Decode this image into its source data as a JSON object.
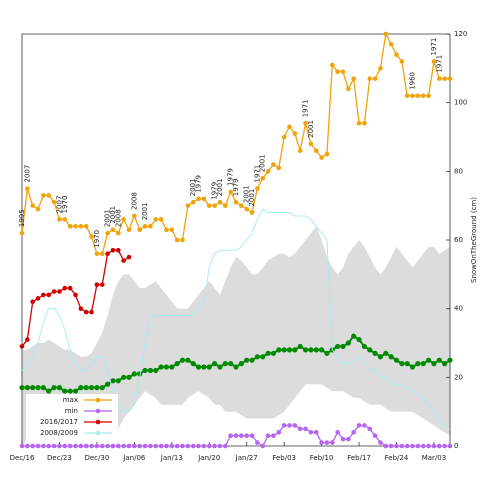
{
  "chart_data": {
    "type": "line",
    "y_label": "SnowOnTheGround (cm)",
    "categories": [
      "Dec/16",
      null,
      null,
      null,
      null,
      null,
      null,
      "Dec/23",
      null,
      null,
      null,
      null,
      null,
      null,
      "Dec/30",
      null,
      null,
      null,
      null,
      null,
      null,
      "Jan/06",
      null,
      null,
      null,
      null,
      null,
      null,
      "Jan/13",
      null,
      null,
      null,
      null,
      null,
      null,
      "Jan/20",
      null,
      null,
      null,
      null,
      null,
      null,
      "Jan/27",
      null,
      null,
      null,
      null,
      null,
      null,
      "Feb/03",
      null,
      null,
      null,
      null,
      null,
      null,
      "Feb/10",
      null,
      null,
      null,
      null,
      null,
      null,
      "Feb/17",
      null,
      null,
      null,
      null,
      null,
      null,
      "Feb/24",
      null,
      null,
      null,
      null,
      null,
      null,
      "Mar/03",
      null,
      null,
      null
    ],
    "ylim": [
      0,
      120
    ],
    "yticks": [
      0,
      20,
      40,
      60,
      80,
      100,
      120
    ],
    "grid": false,
    "legend": "lower left",
    "band": {
      "color": "#dcdcdc",
      "lower": [
        0,
        2,
        5,
        8,
        10,
        12,
        12,
        10,
        8,
        8,
        6,
        5,
        4,
        3,
        3,
        2,
        2,
        3,
        5,
        8,
        10,
        12,
        14,
        16,
        15,
        14,
        12,
        12,
        12,
        12,
        12,
        14,
        15,
        16,
        15,
        14,
        12,
        12,
        10,
        10,
        10,
        9,
        8,
        8,
        8,
        8,
        8,
        8,
        9,
        10,
        12,
        14,
        16,
        18,
        18,
        18,
        18,
        17,
        16,
        16,
        16,
        15,
        14,
        14,
        13,
        12,
        12,
        12,
        11,
        10,
        10,
        10,
        10,
        10,
        9,
        8,
        7,
        6,
        5,
        4,
        3
      ],
      "upper": [
        28,
        28,
        29,
        30,
        30,
        31,
        30,
        29,
        28,
        28,
        27,
        26,
        26,
        27,
        30,
        33,
        38,
        44,
        48,
        50,
        50,
        48,
        46,
        46,
        47,
        48,
        46,
        44,
        42,
        40,
        40,
        40,
        42,
        44,
        46,
        48,
        46,
        44,
        48,
        52,
        55,
        54,
        52,
        50,
        50,
        52,
        54,
        55,
        56,
        56,
        55,
        56,
        58,
        60,
        62,
        64,
        60,
        55,
        52,
        50,
        52,
        56,
        58,
        60,
        58,
        55,
        52,
        50,
        52,
        55,
        58,
        56,
        54,
        52,
        54,
        56,
        58,
        58,
        56,
        57,
        58
      ]
    },
    "series": [
      {
        "color": "#008a00",
        "values": [
          17,
          17,
          17,
          17,
          17,
          16,
          17,
          17,
          16,
          16,
          16,
          17,
          17,
          17,
          17,
          17,
          18,
          19,
          19,
          20,
          20,
          21,
          21,
          22,
          22,
          22,
          23,
          23,
          23,
          24,
          25,
          25,
          24,
          23,
          23,
          23,
          24,
          23,
          24,
          24,
          23,
          24,
          25,
          25,
          26,
          26,
          27,
          27,
          28,
          28,
          28,
          28,
          29,
          28,
          28,
          28,
          28,
          27,
          28,
          29,
          29,
          30,
          32,
          31,
          29,
          28,
          27,
          26,
          27,
          26,
          25,
          24,
          24,
          23,
          24,
          24,
          25,
          24,
          25,
          24,
          25
        ]
      },
      {
        "name": "max",
        "color": "#f0a30a",
        "values": [
          62,
          75,
          70,
          69,
          73,
          73,
          71,
          66,
          66,
          64,
          64,
          64,
          64,
          61,
          56,
          56,
          62,
          63,
          62,
          66,
          63,
          67,
          63,
          64,
          64,
          66,
          66,
          63,
          63,
          60,
          60,
          70,
          71,
          72,
          72,
          70,
          70,
          71,
          70,
          74,
          71,
          70,
          69,
          68,
          75,
          78,
          80,
          82,
          81,
          90,
          93,
          91,
          86,
          94,
          88,
          86,
          84,
          85,
          111,
          109,
          109,
          104,
          107,
          94,
          94,
          107,
          107,
          110,
          120,
          117,
          114,
          112,
          102,
          102,
          102,
          102,
          102,
          112,
          107,
          107,
          107
        ]
      },
      {
        "name": "min",
        "color": "#b565f0",
        "values": [
          0,
          0,
          0,
          0,
          0,
          0,
          0,
          0,
          0,
          0,
          0,
          0,
          0,
          0,
          0,
          0,
          0,
          0,
          0,
          0,
          0,
          0,
          0,
          0,
          0,
          0,
          0,
          0,
          0,
          0,
          0,
          0,
          0,
          0,
          0,
          0,
          0,
          0,
          0,
          3,
          3,
          3,
          3,
          3,
          1,
          0,
          3,
          3,
          4,
          6,
          6,
          6,
          5,
          5,
          4,
          4,
          1,
          1,
          1,
          4,
          2,
          2,
          4,
          6,
          6,
          5,
          3,
          1,
          0,
          0,
          0,
          0,
          0,
          0,
          0,
          0,
          0,
          0,
          0,
          0,
          0
        ]
      },
      {
        "name": "2016/2017",
        "color": "#d40000",
        "values": [
          29,
          31,
          42,
          43,
          44,
          44,
          45,
          45,
          46,
          46,
          44,
          40,
          39,
          39,
          47,
          47,
          56,
          57,
          57,
          54,
          55,
          null,
          null,
          null,
          null,
          null,
          null,
          null,
          null,
          null,
          null,
          null,
          null,
          null,
          null,
          null,
          null,
          null,
          null,
          null,
          null,
          null,
          null,
          null,
          null,
          null,
          null,
          null,
          null,
          null,
          null,
          null,
          null,
          null,
          null,
          null,
          null,
          null,
          null,
          null,
          null,
          null,
          null,
          null,
          null,
          null,
          null,
          null,
          null,
          null,
          null,
          null,
          null,
          null,
          null,
          null,
          null,
          null,
          null,
          null,
          null
        ]
      },
      {
        "name": "2008/2009",
        "color": "#a8ecf0",
        "values": [
          22,
          24,
          26,
          30,
          36,
          40,
          40,
          38,
          34,
          28,
          24,
          22,
          22,
          24,
          26,
          26,
          22,
          16,
          12,
          10,
          10,
          12,
          20,
          30,
          38,
          38,
          38,
          38,
          38,
          38,
          38,
          38,
          38,
          40,
          42,
          52,
          56,
          57,
          57,
          57,
          57,
          58,
          60,
          62,
          66,
          69,
          68,
          68,
          68,
          68,
          68,
          67,
          67,
          67,
          66,
          64,
          62,
          60,
          28,
          26,
          24,
          24,
          25,
          26,
          24,
          22,
          22,
          20,
          20,
          19,
          18,
          18,
          17,
          16,
          15,
          14,
          12,
          10,
          8,
          6,
          5
        ]
      }
    ],
    "annotations": [
      {
        "text": "1995",
        "series": 1,
        "index": 0
      },
      {
        "text": "2007",
        "series": 1,
        "index": 1
      },
      {
        "text": "2007",
        "series": 1,
        "index": 7
      },
      {
        "text": "1970",
        "series": 1,
        "index": 8
      },
      {
        "text": "1970",
        "series": 1,
        "index": 14
      },
      {
        "text": "2001",
        "series": 1,
        "index": 16
      },
      {
        "text": "2001",
        "series": 1,
        "index": 17
      },
      {
        "text": "2008",
        "series": 1,
        "index": 18
      },
      {
        "text": "2008",
        "series": 1,
        "index": 21
      },
      {
        "text": "2001",
        "series": 1,
        "index": 23
      },
      {
        "text": "2001",
        "series": 1,
        "index": 32
      },
      {
        "text": "1979",
        "series": 1,
        "index": 33
      },
      {
        "text": "1979",
        "series": 1,
        "index": 36
      },
      {
        "text": "2001",
        "series": 1,
        "index": 37
      },
      {
        "text": "1979",
        "series": 1,
        "index": 39
      },
      {
        "text": "1979",
        "series": 1,
        "index": 40
      },
      {
        "text": "2001",
        "series": 1,
        "index": 42
      },
      {
        "text": "2001",
        "series": 1,
        "index": 43
      },
      {
        "text": "1971",
        "series": 1,
        "index": 44
      },
      {
        "text": "2001",
        "series": 1,
        "index": 45
      },
      {
        "text": "1971",
        "series": 1,
        "index": 53
      },
      {
        "text": "2001",
        "series": 1,
        "index": 54
      },
      {
        "text": "1960",
        "series": 1,
        "index": 73
      },
      {
        "text": "1971",
        "series": 1,
        "index": 77
      },
      {
        "text": "1971",
        "series": 1,
        "index": 78
      }
    ]
  }
}
